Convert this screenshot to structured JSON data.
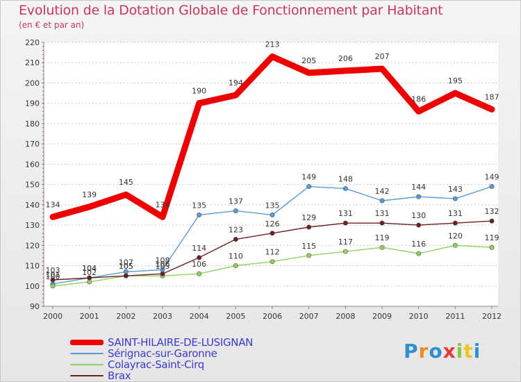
{
  "title": "Evolution de la Dotation Globale de Fonctionnement par Habitant",
  "subtitle": "(en € et par an)",
  "logo_text": "Proxiti",
  "chart_data": {
    "type": "line",
    "x": [
      2000,
      2001,
      2002,
      2003,
      2004,
      2005,
      2006,
      2007,
      2008,
      2009,
      2010,
      2011,
      2012
    ],
    "ylim": [
      90,
      220
    ],
    "yticks": [
      90,
      100,
      110,
      120,
      130,
      140,
      150,
      160,
      170,
      180,
      190,
      200,
      210,
      220
    ],
    "grid": "horizontal dotted",
    "legend_position": "bottom-left",
    "series": [
      {
        "name": "SAINT-HILAIRE-DE-LUSIGNAN",
        "color": "#ee0000",
        "values": [
          134,
          139,
          145,
          134,
          190,
          194,
          213,
          205,
          206,
          207,
          186,
          195,
          187
        ]
      },
      {
        "name": "Sérignac-sur-Garonne",
        "color": "#5b9bd5",
        "values": [
          101,
          104,
          107,
          108,
          135,
          137,
          135,
          149,
          148,
          142,
          144,
          143,
          149
        ]
      },
      {
        "name": "Colayrac-Saint-Cirq",
        "color": "#90d060",
        "values": [
          100,
          102,
          105,
          105,
          106,
          110,
          112,
          115,
          117,
          119,
          116,
          120,
          119
        ]
      },
      {
        "name": "Brax",
        "color": "#6b1f1f",
        "values": [
          103,
          104,
          105,
          106,
          114,
          123,
          126,
          129,
          131,
          131,
          130,
          131,
          132
        ]
      }
    ]
  }
}
